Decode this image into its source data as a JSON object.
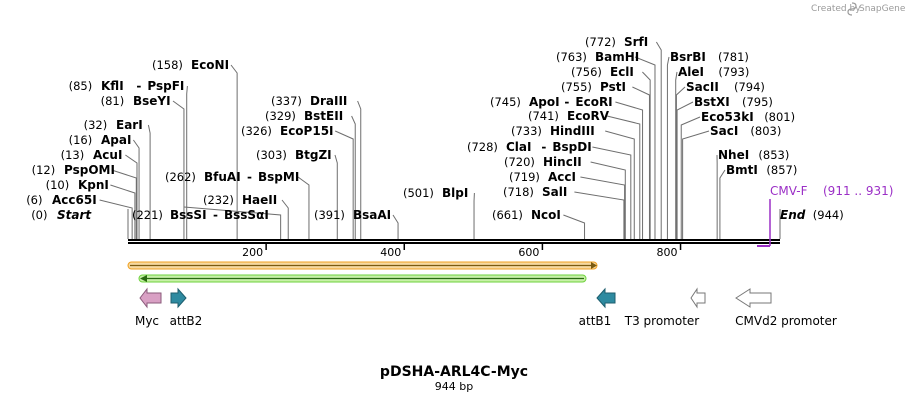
{
  "credit": {
    "prefix": "Created by",
    "brand": "SnapGene"
  },
  "plasmid": {
    "name": "pDSHA-ARL4C-Myc",
    "size_label": "944 bp",
    "length": 944
  },
  "scale": {
    "ticks": [
      200,
      400,
      600,
      800
    ]
  },
  "sites": [
    {
      "id": "start",
      "pos": "(0)",
      "name": "Start",
      "bp": 0,
      "special": true
    },
    {
      "id": "acc65i",
      "pos": "(6)",
      "name": "Acc65I",
      "bp": 6
    },
    {
      "id": "kpni",
      "pos": "(10)",
      "name": "KpnI",
      "bp": 10
    },
    {
      "id": "pspomi",
      "pos": "(12)",
      "name": "PspOMI",
      "bp": 12
    },
    {
      "id": "acui",
      "pos": "(13)",
      "name": "AcuI",
      "bp": 13
    },
    {
      "id": "apai",
      "pos": "(16)",
      "name": "ApaI",
      "bp": 16
    },
    {
      "id": "eari",
      "pos": "(32)",
      "name": "EarI",
      "bp": 32
    },
    {
      "id": "bseyi",
      "pos": "(81)",
      "name": "BseYI",
      "bp": 81
    },
    {
      "id": "kfli",
      "pos": "(85)",
      "name": "KflI",
      "name2": "PspFI",
      "bp": 85
    },
    {
      "id": "econi",
      "pos": "(158)",
      "name": "EcoNI",
      "bp": 158
    },
    {
      "id": "bsssi",
      "pos": "(221)",
      "name": "BssSI",
      "name2": "BssSαI",
      "bp": 221,
      "posRight": true
    },
    {
      "id": "bfuai",
      "pos": "(262)",
      "name": "BfuAI",
      "name2": "BspMI",
      "bp": 262
    },
    {
      "id": "haeii",
      "pos": "(232)",
      "name": "HaeII",
      "bp": 232
    },
    {
      "id": "btgzi",
      "pos": "(303)",
      "name": "BtgZI",
      "bp": 303
    },
    {
      "id": "ecop15i",
      "pos": "(326)",
      "name": "EcoP15I",
      "bp": 326
    },
    {
      "id": "bsteii",
      "pos": "(329)",
      "name": "BstEII",
      "bp": 329
    },
    {
      "id": "draiii",
      "pos": "(337)",
      "name": "DraIII",
      "bp": 337
    },
    {
      "id": "bsaai",
      "pos": "(391)",
      "name": "BsaAI",
      "bp": 391
    },
    {
      "id": "blpi",
      "pos": "(501)",
      "name": "BlpI",
      "bp": 501
    },
    {
      "id": "ncoi",
      "pos": "(661)",
      "name": "NcoI",
      "bp": 661
    },
    {
      "id": "sali",
      "pos": "(718)",
      "name": "SalI",
      "bp": 718
    },
    {
      "id": "acci",
      "pos": "(719)",
      "name": "AccI",
      "bp": 719
    },
    {
      "id": "hincii",
      "pos": "(720)",
      "name": "HincII",
      "bp": 720
    },
    {
      "id": "clai",
      "pos": "(728)",
      "name": "ClaI",
      "name2": "BspDI",
      "bp": 728
    },
    {
      "id": "hindiii",
      "pos": "(733)",
      "name": "HindIII",
      "bp": 733
    },
    {
      "id": "ecorv",
      "pos": "(741)",
      "name": "EcoRV",
      "bp": 741
    },
    {
      "id": "apoi",
      "pos": "(745)",
      "name": "ApoI",
      "name2": "EcoRI",
      "bp": 745
    },
    {
      "id": "psti",
      "pos": "(755)",
      "name": "PstI",
      "bp": 755
    },
    {
      "id": "ecli",
      "pos": "(756)",
      "name": "EclI",
      "bp": 756
    },
    {
      "id": "bamhi",
      "pos": "(763)",
      "name": "BamHI",
      "bp": 763
    },
    {
      "id": "srfi",
      "pos": "(772)",
      "name": "SrfI",
      "bp": 772
    },
    {
      "id": "bsrbi",
      "pos": "(781)",
      "name": "BsrBI",
      "bp": 781,
      "posRight": true
    },
    {
      "id": "alei",
      "pos": "(793)",
      "name": "AleI",
      "bp": 793,
      "posRight": true
    },
    {
      "id": "sacii",
      "pos": "(794)",
      "name": "SacII",
      "bp": 794,
      "posRight": true
    },
    {
      "id": "bstxi",
      "pos": "(795)",
      "name": "BstXI",
      "bp": 795,
      "posRight": true
    },
    {
      "id": "eco53ki",
      "pos": "(801)",
      "name": "Eco53kI",
      "bp": 801,
      "posRight": true
    },
    {
      "id": "saci",
      "pos": "(803)",
      "name": "SacI",
      "bp": 803,
      "posRight": true
    },
    {
      "id": "nhei",
      "pos": "(853)",
      "name": "NheI",
      "bp": 853,
      "posRight": true
    },
    {
      "id": "bmti",
      "pos": "(857)",
      "name": "BmtI",
      "bp": 857,
      "posRight": true
    },
    {
      "id": "end",
      "pos": "(944)",
      "name": "End",
      "bp": 944,
      "special": true,
      "posRight": true
    }
  ],
  "primer": {
    "name": "CMV-F",
    "range": "(911 .. 931)",
    "color": "#9b2fc6"
  },
  "features": [
    {
      "id": "myc",
      "label": "Myc",
      "color": "#d9a0c4",
      "stroke": "#8a5a7a"
    },
    {
      "id": "attb2",
      "label": "attB2",
      "color": "#2e8aa0",
      "stroke": "#1d5e6e"
    },
    {
      "id": "attb1",
      "label": "attB1",
      "color": "#2e8aa0",
      "stroke": "#1d5e6e"
    },
    {
      "id": "t3",
      "label": "T3 promoter",
      "color": "#ffffff",
      "stroke": "#777777"
    },
    {
      "id": "cmvd2",
      "label": "CMVd2 promoter",
      "color": "#ffffff",
      "stroke": "#777777"
    }
  ],
  "orfs": [
    {
      "id": "orf-orange",
      "color": "#f0a020"
    },
    {
      "id": "orf-green",
      "color": "#6ed23c"
    }
  ]
}
